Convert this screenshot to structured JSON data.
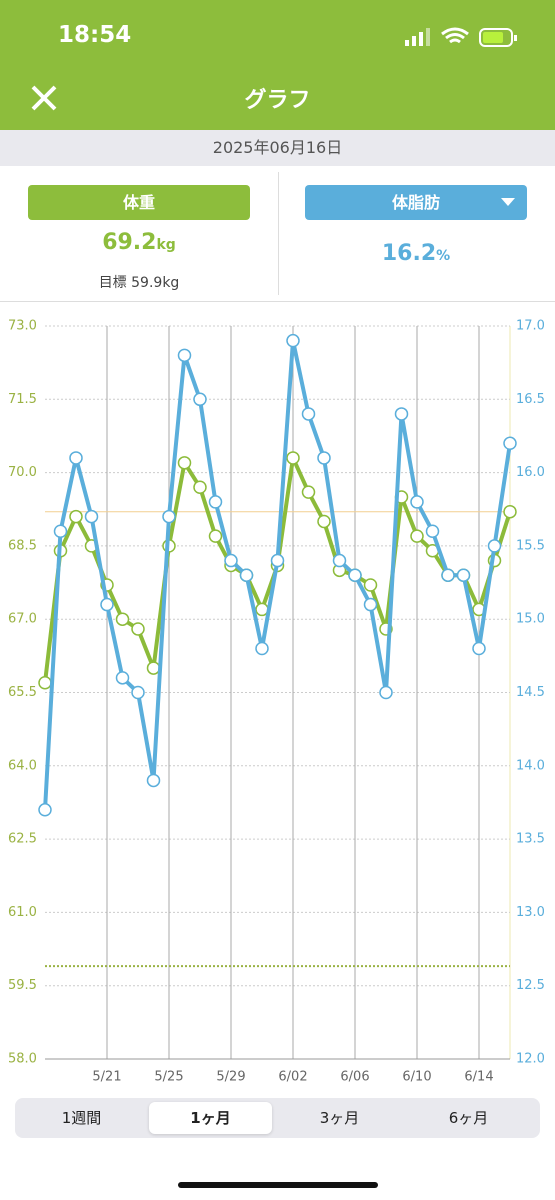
{
  "status_bar": {
    "time": "18:54"
  },
  "header": {
    "title": "グラフ"
  },
  "date": "2025年06月16日",
  "weight": {
    "button": "体重",
    "value": 69.2,
    "unit": "kg",
    "goal_label": "目標",
    "goal": 59.9,
    "goal_unit": "kg"
  },
  "body_fat": {
    "button": "体脂肪",
    "value": 16.2,
    "unit": "%"
  },
  "chart_data": {
    "type": "line",
    "categories": [
      null,
      null,
      null,
      null,
      "5/21",
      null,
      null,
      null,
      "5/25",
      null,
      null,
      null,
      "5/29",
      null,
      null,
      null,
      "6/02",
      null,
      null,
      null,
      "6/06",
      null,
      null,
      null,
      "6/10",
      null,
      null,
      null,
      "6/14",
      null,
      null
    ],
    "series": [
      {
        "name": "体重",
        "color": "#8cbb3a",
        "axis": "y",
        "values": [
          65.7,
          68.4,
          69.1,
          68.5,
          67.7,
          67.0,
          66.8,
          66.0,
          68.5,
          70.2,
          69.7,
          68.7,
          68.1,
          67.9,
          67.2,
          68.1,
          70.3,
          69.6,
          69.0,
          68.0,
          67.9,
          67.7,
          66.8,
          69.5,
          68.7,
          68.4,
          67.9,
          67.9,
          67.2,
          68.2,
          69.2
        ]
      },
      {
        "name": "体脂肪",
        "color": "#5aaedb",
        "axis": "y2",
        "values": [
          13.7,
          15.6,
          16.1,
          15.7,
          15.1,
          14.6,
          14.5,
          13.9,
          15.7,
          16.8,
          16.5,
          15.8,
          15.4,
          15.3,
          14.8,
          15.4,
          16.9,
          16.4,
          16.1,
          15.4,
          15.3,
          15.1,
          14.5,
          16.4,
          15.8,
          15.6,
          15.3,
          15.3,
          14.8,
          15.5,
          16.2
        ]
      }
    ],
    "ylim": [
      58,
      73
    ],
    "yticks": [
      {
        "value": 58,
        "label": "58.0"
      },
      59.5,
      {
        "value": 61,
        "label": "61.0"
      },
      62.5,
      {
        "value": 64,
        "label": "64.0"
      },
      65.5,
      {
        "value": 67,
        "label": "67.0"
      },
      68.5,
      {
        "value": 70,
        "label": "70.0"
      },
      71.5,
      {
        "value": 73,
        "label": "73.0"
      }
    ],
    "y2lim": [
      12,
      17
    ],
    "y2ticks": [
      {
        "value": 12,
        "label": "12.0"
      },
      12.5,
      {
        "value": 13,
        "label": "13.0"
      },
      13.5,
      {
        "value": 14,
        "label": "14.0"
      },
      14.5,
      {
        "value": 15,
        "label": "15.0"
      },
      15.5,
      {
        "value": 16,
        "label": "16.0"
      },
      16.5,
      {
        "value": 17,
        "label": "17.0"
      }
    ],
    "grid": true
  },
  "tabs": [
    "1週間",
    "1ヶ月",
    "3ヶ月",
    "6ヶ月"
  ],
  "selected_tab": 1
}
